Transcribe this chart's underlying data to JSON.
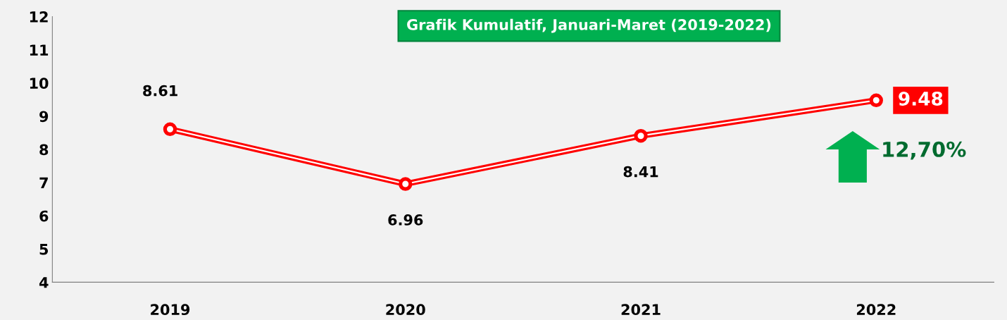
{
  "chart_data": {
    "type": "line",
    "title": "Grafik Kumulatif, Januari-Maret (2019-2022)",
    "categories": [
      "2019",
      "2020",
      "2021",
      "2022"
    ],
    "series": [
      {
        "color": "#ff0000",
        "values": [
          8.61,
          6.96,
          8.41,
          9.48
        ]
      }
    ],
    "ylim": [
      4,
      12
    ],
    "yticks": [
      4,
      5,
      6,
      7,
      8,
      9,
      10,
      11,
      12
    ],
    "data_labels": true,
    "marker": "circle",
    "grid": false,
    "annotations": [
      "12,70%"
    ]
  }
}
